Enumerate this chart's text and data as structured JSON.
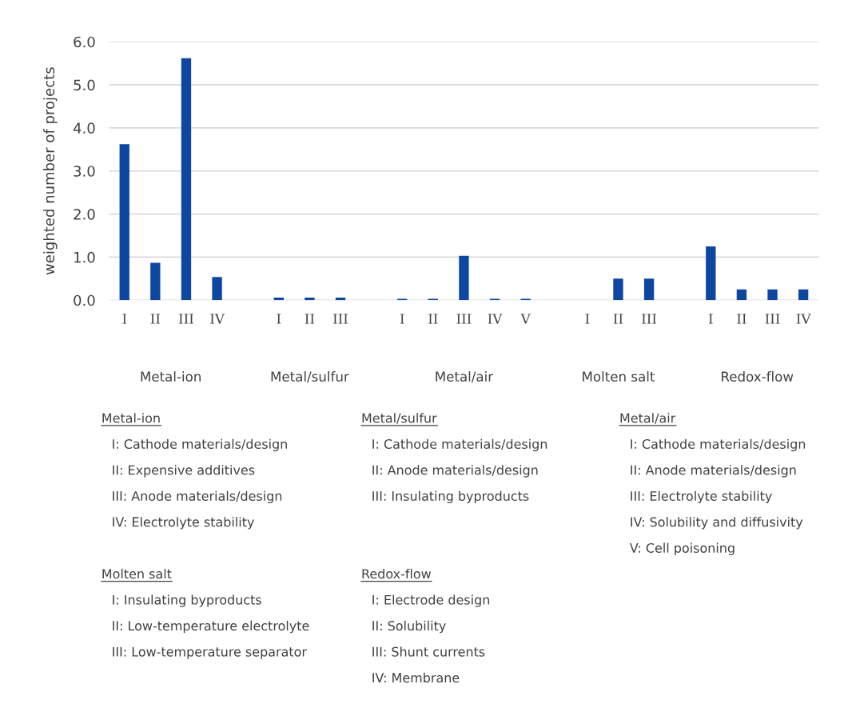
{
  "chart_data": {
    "type": "bar",
    "ylabel": "weighted number of projects",
    "categories": [
      "I",
      "II",
      "III",
      "IV",
      null,
      "I",
      "II",
      "III",
      null,
      "I",
      "II",
      "III",
      "IV",
      "V",
      null,
      "I",
      "II",
      "III",
      null,
      "I",
      "II",
      "III",
      "IV"
    ],
    "values": [
      3.62,
      0.87,
      5.62,
      0.54,
      null,
      0.06,
      0.06,
      0.06,
      null,
      0.03,
      0.03,
      1.03,
      0.03,
      0.03,
      null,
      0,
      0.5,
      0.5,
      null,
      1.25,
      0.25,
      0.25,
      0.25
    ],
    "color": "#0d47a1",
    "ylim": [
      0,
      6
    ],
    "yticks": [
      {
        "value": 0,
        "label": "0.0"
      },
      {
        "value": 1,
        "label": "1.0"
      },
      {
        "value": 2,
        "label": "2.0"
      },
      {
        "value": 3,
        "label": "3.0"
      },
      {
        "value": 4,
        "label": "4.0"
      },
      {
        "value": 5,
        "label": "5.0"
      },
      {
        "value": 6,
        "label": "6.0"
      }
    ],
    "grid": "y",
    "annotations": [
      "Metal-ion",
      "Metal/sulfur",
      "Metal/air",
      "Molten salt",
      "Redox-flow",
      "Metal-ion",
      "I: Cathode materials/design",
      "II: Expensive additives",
      "III: Anode materials/design",
      "IV: Electrolyte stability",
      "Metal/sulfur",
      "I: Cathode materials/design",
      "II: Anode materials/design",
      "III: Insulating byproducts",
      "Metal/air",
      "I: Cathode materials/design",
      "II: Anode materials/design",
      "III: Electrolyte stability",
      "IV: Solubility and diffusivity",
      "V: Cell poisoning",
      "Molten salt",
      "I: Insulating byproducts",
      "II: Low-temperature electrolyte",
      "III: Low-temperature separator",
      "Redox-flow",
      "I: Electrode design",
      "II: Solubility",
      "III: Shunt currents",
      "IV: Membrane"
    ]
  }
}
